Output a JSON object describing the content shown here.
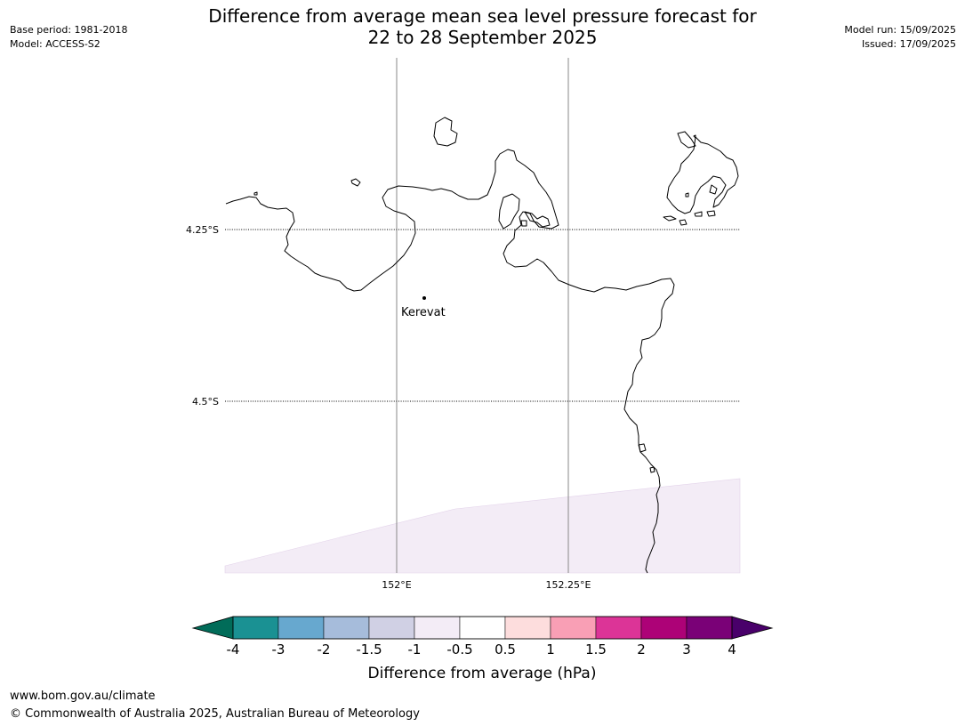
{
  "header": {
    "title_line1": "Difference from average mean sea level pressure forecast for",
    "title_line2": "22 to 28 September 2025",
    "base_period": "Base period: 1981-2018",
    "model": "Model: ACCESS-S2",
    "model_run": "Model run: 15/09/2025",
    "issued": "Issued: 17/09/2025"
  },
  "map": {
    "lat_labels": [
      "4.25°S",
      "4.5°S"
    ],
    "lon_labels": [
      "152°E",
      "152.25°E"
    ],
    "place": {
      "name": "Kerevat"
    },
    "coastline_color": "#000000",
    "anomaly_fill_color": "#f3ecf6",
    "anomaly_category": "-1 to -0.5"
  },
  "colorbar": {
    "label": "Difference from average (hPa)",
    "ticks": [
      "-4",
      "-3",
      "-2",
      "-1.5",
      "-1",
      "-0.5",
      "0.5",
      "1",
      "1.5",
      "2",
      "3",
      "4"
    ],
    "colors": [
      "#1a9193",
      "#67a8cf",
      "#a6bcdb",
      "#d0d0e4",
      "#f3ecf6",
      "#ffffff",
      "#fddddd",
      "#f99fb5",
      "#dc3497",
      "#ad0277",
      "#7a0177"
    ],
    "under_color": "#016c59",
    "over_color": "#49006a"
  },
  "footer": {
    "url": "www.bom.gov.au/climate",
    "copyright": "© Commonwealth of Australia 2025, Australian Bureau of Meteorology"
  }
}
